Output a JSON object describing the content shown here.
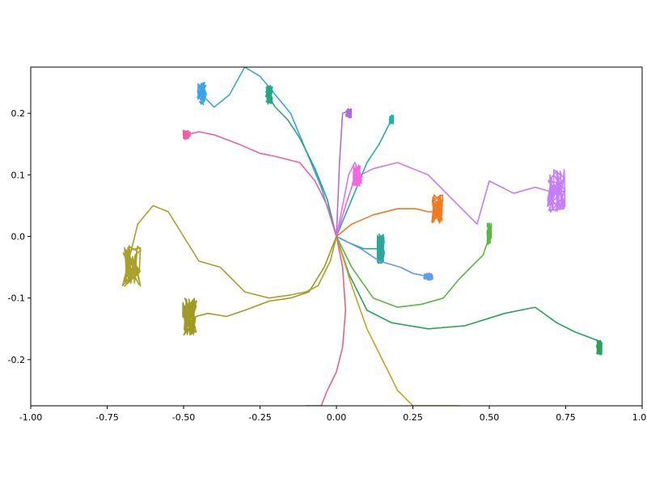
{
  "chart_data": {
    "type": "line",
    "title": "",
    "xlabel": "",
    "ylabel": "",
    "xlim": [
      -1.0,
      1.0
    ],
    "ylim": [
      -0.275,
      0.275
    ],
    "grid": false,
    "xticks": [
      -1.0,
      -0.75,
      -0.5,
      -0.25,
      0.0,
      0.25,
      0.5,
      0.75,
      1.0
    ],
    "xtick_labels": [
      "-1.00",
      "-0.75",
      "-0.50",
      "-0.25",
      "0.00",
      "0.25",
      "0.50",
      "0.75",
      "1.00"
    ],
    "yticks": [
      -0.2,
      -0.1,
      0.0,
      0.1,
      0.2
    ],
    "ytick_labels": [
      "-0.2",
      "-0.1",
      "0.0",
      "0.1",
      "0.2"
    ],
    "series": [
      {
        "color": "#3ba3ec",
        "x": [
          0.0,
          -0.05,
          -0.1,
          -0.15,
          -0.2,
          -0.25,
          -0.3,
          -0.35,
          -0.4,
          -0.44
        ],
        "y": [
          0.0,
          0.08,
          0.14,
          0.2,
          0.23,
          0.26,
          0.275,
          0.23,
          0.21,
          0.23
        ],
        "cluster": [
          -0.44,
          0.232,
          0.025,
          0.03
        ]
      },
      {
        "color": "#22a884",
        "x": [
          0.0,
          -0.03,
          -0.07,
          -0.12,
          -0.16,
          -0.2,
          -0.22
        ],
        "y": [
          0.0,
          0.06,
          0.11,
          0.16,
          0.19,
          0.21,
          0.225
        ],
        "cluster": [
          -0.22,
          0.23,
          0.02,
          0.025
        ]
      },
      {
        "color": "#ee5fa7",
        "x": [
          0.0,
          -0.03,
          -0.07,
          -0.12,
          -0.2,
          -0.25,
          -0.32,
          -0.4,
          -0.45,
          -0.49
        ],
        "y": [
          0.0,
          0.05,
          0.09,
          0.12,
          0.13,
          0.135,
          0.15,
          0.165,
          0.17,
          0.165
        ],
        "cluster": [
          -0.49,
          0.165,
          0.02,
          0.012
        ]
      },
      {
        "color": "#c77cff",
        "x": [
          0.0,
          0.02,
          0.04,
          0.06,
          0.08,
          0.12,
          0.2,
          0.3,
          0.4,
          0.46,
          0.5,
          0.58,
          0.65,
          0.72
        ],
        "y": [
          0.0,
          0.05,
          0.1,
          0.12,
          0.1,
          0.11,
          0.12,
          0.1,
          0.05,
          0.02,
          0.09,
          0.07,
          0.08,
          0.07
        ],
        "cluster": [
          0.72,
          0.075,
          0.05,
          0.06
        ]
      },
      {
        "color": "#b06ae0",
        "x": [
          0.0,
          0.01,
          0.02
        ],
        "y": [
          0.0,
          0.12,
          0.2
        ],
        "cluster": [
          0.04,
          0.2,
          0.015,
          0.012
        ]
      },
      {
        "color": "#1fb2a6",
        "x": [
          0.0,
          0.05,
          0.1,
          0.14,
          0.17
        ],
        "y": [
          0.0,
          0.06,
          0.12,
          0.15,
          0.18
        ],
        "cluster": [
          0.18,
          0.19,
          0.012,
          0.012
        ]
      },
      {
        "color": "#f564e3",
        "x": [
          0.0,
          0.03,
          0.05,
          0.06
        ],
        "y": [
          0.0,
          0.05,
          0.08,
          0.1
        ],
        "cluster": [
          0.07,
          0.1,
          0.025,
          0.03
        ]
      },
      {
        "color": "#f37b1f",
        "x": [
          0.0,
          0.05,
          0.12,
          0.2,
          0.26,
          0.3,
          0.32
        ],
        "y": [
          0.0,
          0.02,
          0.035,
          0.045,
          0.045,
          0.04,
          0.04
        ],
        "cluster": [
          0.33,
          0.045,
          0.03,
          0.04
        ]
      },
      {
        "color": "#57b93e",
        "x": [
          0.0,
          0.05,
          0.12,
          0.2,
          0.28,
          0.35,
          0.4,
          0.44,
          0.48,
          0.5
        ],
        "y": [
          0.0,
          -0.05,
          -0.1,
          -0.115,
          -0.11,
          -0.1,
          -0.07,
          -0.05,
          -0.03,
          0.0
        ],
        "cluster": [
          0.5,
          0.005,
          0.012,
          0.03
        ]
      },
      {
        "color": "#27a35a",
        "x": [
          0.0,
          0.04,
          0.1,
          0.18,
          0.3,
          0.42,
          0.55,
          0.65,
          0.72,
          0.78,
          0.86
        ],
        "y": [
          0.0,
          -0.06,
          -0.12,
          -0.14,
          -0.15,
          -0.145,
          -0.125,
          -0.115,
          -0.14,
          -0.155,
          -0.17
        ],
        "cluster": [
          0.86,
          -0.18,
          0.015,
          0.02
        ]
      },
      {
        "color": "#2aa99b",
        "x": [
          0.0,
          0.04,
          0.09,
          0.14
        ],
        "y": [
          0.0,
          -0.01,
          -0.02,
          -0.02
        ],
        "cluster": [
          0.145,
          -0.02,
          0.02,
          0.04
        ]
      },
      {
        "color": "#5b9bf0",
        "x": [
          0.0,
          0.08,
          0.14,
          0.21,
          0.25,
          0.3
        ],
        "y": [
          0.0,
          -0.02,
          -0.04,
          -0.05,
          -0.06,
          -0.065
        ],
        "cluster": [
          0.3,
          -0.065,
          0.025,
          0.01
        ]
      },
      {
        "color": "#c9a227",
        "x": [
          0.0,
          0.05,
          0.1,
          0.15,
          0.2,
          0.25,
          0.3,
          0.35,
          0.4
        ],
        "y": [
          0.0,
          -0.08,
          -0.15,
          -0.2,
          -0.25,
          -0.275,
          -0.275,
          -0.275,
          -0.275
        ],
        "cluster": null
      },
      {
        "color": "#e8637d",
        "x": [
          0.0,
          0.02,
          0.03,
          0.02,
          0.0,
          -0.03,
          -0.05,
          -0.07,
          -0.1
        ],
        "y": [
          0.0,
          -0.05,
          -0.12,
          -0.18,
          -0.22,
          -0.25,
          -0.275,
          -0.275,
          -0.275
        ],
        "cluster": null
      },
      {
        "color": "#a8a12a",
        "x": [
          0.0,
          -0.02,
          -0.06,
          -0.1,
          -0.15,
          -0.22,
          -0.3,
          -0.38,
          -0.45,
          -0.5,
          -0.55,
          -0.6,
          -0.65,
          -0.68
        ],
        "y": [
          0.0,
          -0.04,
          -0.08,
          -0.09,
          -0.095,
          -0.1,
          -0.09,
          -0.05,
          -0.04,
          0.0,
          0.04,
          0.05,
          0.02,
          -0.04
        ],
        "cluster": [
          -0.67,
          -0.045,
          0.05,
          0.06
        ]
      },
      {
        "color": "#9f9b22",
        "x": [
          0.0,
          -0.04,
          -0.09,
          -0.15,
          -0.22,
          -0.3,
          -0.36,
          -0.42,
          -0.46
        ],
        "y": [
          0.0,
          -0.05,
          -0.09,
          -0.1,
          -0.105,
          -0.12,
          -0.13,
          -0.125,
          -0.13
        ],
        "cluster": [
          -0.48,
          -0.13,
          0.04,
          0.05
        ]
      }
    ]
  }
}
